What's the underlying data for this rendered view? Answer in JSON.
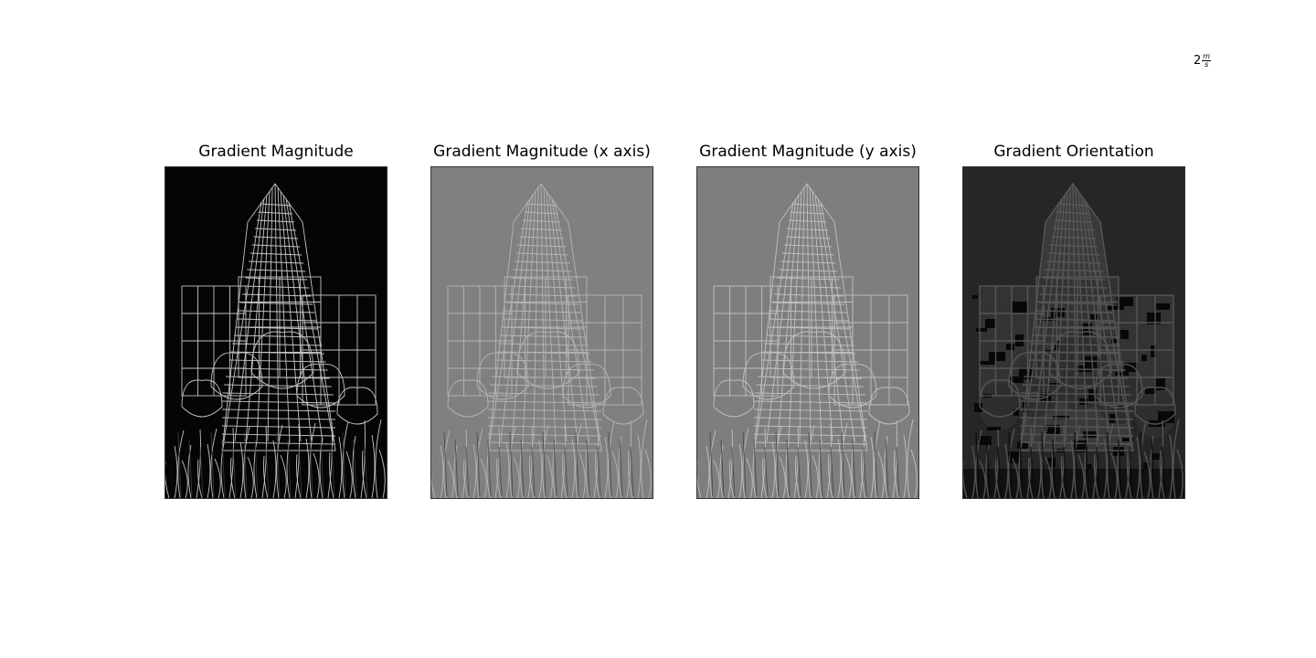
{
  "corner_label": {
    "base": "2",
    "numerator": "m",
    "denominator": "s"
  },
  "panels": [
    {
      "title": "Gradient Magnitude",
      "style": "magnitude"
    },
    {
      "title": "Gradient Magnitude (x axis)",
      "style": "x-axis"
    },
    {
      "title": "Gradient Magnitude (y axis)",
      "style": "y-axis"
    },
    {
      "title": "Gradient Orientation",
      "style": "orientation"
    }
  ]
}
